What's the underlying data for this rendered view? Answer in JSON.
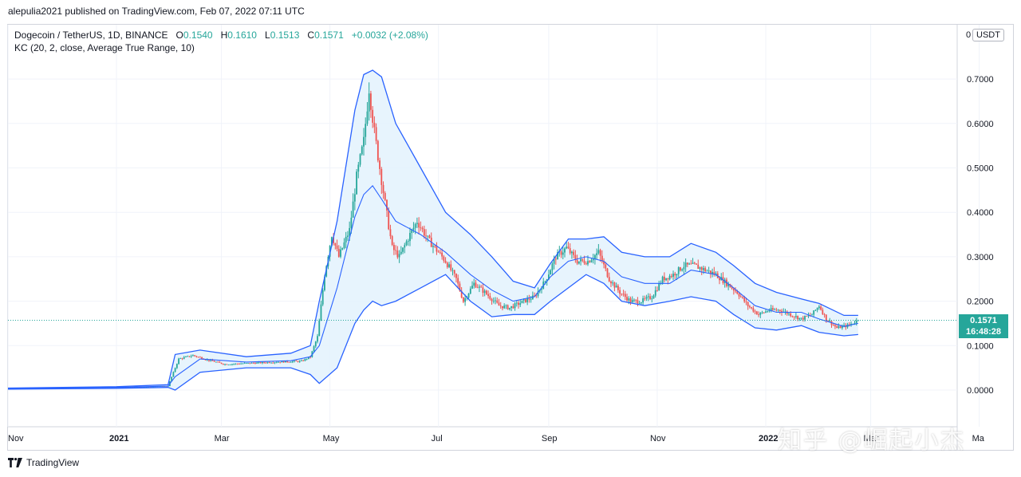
{
  "publisher_line": "alepulia2021 published on TradingView.com, Feb 07, 2022 07:11 UTC",
  "legend": {
    "symbol": "Dogecoin / TetherUS, 1D, BINANCE",
    "open_label": "O",
    "open": "0.1540",
    "high_label": "H",
    "high": "0.1610",
    "low_label": "L",
    "low": "0.1513",
    "close_label": "C",
    "close": "0.1571",
    "change": "+0.0032 (+2.08%)",
    "indicator": "KC (20, 2, close, Average True Range, 10)"
  },
  "unit_badge": "USDT",
  "top_tick_partial": "0",
  "price_tag": {
    "price": "0.1571",
    "countdown": "16:48:28"
  },
  "footer_brand": "TradingView",
  "watermark": "知乎 @崛起小杰",
  "colors": {
    "up": "#26a69a",
    "down": "#ef5350",
    "band": "#2962ff",
    "band_fill": "#e3f2fd"
  },
  "chart_data": {
    "type": "candlestick",
    "title": "Dogecoin / TetherUS, 1D, BINANCE",
    "y_ticks": [
      0.0,
      0.1,
      0.2,
      0.3,
      0.4,
      0.5,
      0.6,
      0.7
    ],
    "y_tick_labels": [
      "0.0000",
      "0.1000",
      "0.2000",
      "0.3000",
      "0.4000",
      "0.5000",
      "0.6000",
      "0.7000"
    ],
    "ylim": [
      -0.1,
      0.79
    ],
    "x_tick_labels": [
      "Nov",
      "2021",
      "Mar",
      "May",
      "Jul",
      "Sep",
      "Nov",
      "2022",
      "Mar",
      "Ma"
    ],
    "x_tick_days": [
      0,
      61,
      120,
      181,
      242,
      304,
      365,
      426,
      485,
      546
    ],
    "xlim": [
      0,
      540
    ],
    "last_price": 0.1571,
    "keltner_upper": [
      [
        0,
        0.0045
      ],
      [
        61,
        0.0075
      ],
      [
        90,
        0.012
      ],
      [
        94,
        0.08
      ],
      [
        108,
        0.09
      ],
      [
        134,
        0.075
      ],
      [
        159,
        0.083
      ],
      [
        170,
        0.1
      ],
      [
        175,
        0.2
      ],
      [
        185,
        0.38
      ],
      [
        195,
        0.63
      ],
      [
        200,
        0.71
      ],
      [
        205,
        0.72
      ],
      [
        210,
        0.705
      ],
      [
        218,
        0.6
      ],
      [
        232,
        0.5
      ],
      [
        246,
        0.4
      ],
      [
        260,
        0.35
      ],
      [
        272,
        0.3
      ],
      [
        284,
        0.245
      ],
      [
        296,
        0.23
      ],
      [
        305,
        0.285
      ],
      [
        315,
        0.34
      ],
      [
        325,
        0.34
      ],
      [
        335,
        0.345
      ],
      [
        345,
        0.31
      ],
      [
        358,
        0.3
      ],
      [
        372,
        0.3
      ],
      [
        384,
        0.33
      ],
      [
        398,
        0.31
      ],
      [
        408,
        0.28
      ],
      [
        420,
        0.24
      ],
      [
        432,
        0.22
      ],
      [
        446,
        0.205
      ],
      [
        456,
        0.195
      ],
      [
        470,
        0.168
      ],
      [
        478,
        0.168
      ]
    ],
    "keltner_mid": [
      [
        0,
        0.0035
      ],
      [
        61,
        0.006
      ],
      [
        90,
        0.009
      ],
      [
        94,
        0.03
      ],
      [
        108,
        0.07
      ],
      [
        134,
        0.063
      ],
      [
        159,
        0.066
      ],
      [
        170,
        0.075
      ],
      [
        175,
        0.1
      ],
      [
        185,
        0.23
      ],
      [
        195,
        0.39
      ],
      [
        200,
        0.44
      ],
      [
        205,
        0.46
      ],
      [
        210,
        0.43
      ],
      [
        218,
        0.38
      ],
      [
        232,
        0.35
      ],
      [
        246,
        0.31
      ],
      [
        260,
        0.26
      ],
      [
        272,
        0.225
      ],
      [
        284,
        0.2
      ],
      [
        296,
        0.21
      ],
      [
        305,
        0.255
      ],
      [
        315,
        0.29
      ],
      [
        325,
        0.3
      ],
      [
        335,
        0.29
      ],
      [
        345,
        0.255
      ],
      [
        358,
        0.24
      ],
      [
        372,
        0.24
      ],
      [
        384,
        0.27
      ],
      [
        398,
        0.26
      ],
      [
        408,
        0.23
      ],
      [
        420,
        0.19
      ],
      [
        432,
        0.175
      ],
      [
        446,
        0.175
      ],
      [
        456,
        0.16
      ],
      [
        470,
        0.143
      ],
      [
        478,
        0.15
      ]
    ],
    "keltner_lower": [
      [
        0,
        0.002
      ],
      [
        61,
        0.004
      ],
      [
        90,
        0.006
      ],
      [
        94,
        0.0
      ],
      [
        108,
        0.04
      ],
      [
        134,
        0.05
      ],
      [
        159,
        0.05
      ],
      [
        170,
        0.035
      ],
      [
        175,
        0.015
      ],
      [
        185,
        0.05
      ],
      [
        195,
        0.15
      ],
      [
        200,
        0.18
      ],
      [
        205,
        0.2
      ],
      [
        210,
        0.19
      ],
      [
        218,
        0.2
      ],
      [
        232,
        0.23
      ],
      [
        246,
        0.26
      ],
      [
        260,
        0.2
      ],
      [
        272,
        0.165
      ],
      [
        284,
        0.17
      ],
      [
        296,
        0.17
      ],
      [
        305,
        0.2
      ],
      [
        315,
        0.23
      ],
      [
        325,
        0.26
      ],
      [
        335,
        0.24
      ],
      [
        345,
        0.2
      ],
      [
        358,
        0.19
      ],
      [
        372,
        0.2
      ],
      [
        384,
        0.21
      ],
      [
        398,
        0.2
      ],
      [
        408,
        0.17
      ],
      [
        420,
        0.14
      ],
      [
        432,
        0.135
      ],
      [
        446,
        0.145
      ],
      [
        456,
        0.13
      ],
      [
        470,
        0.122
      ],
      [
        478,
        0.125
      ]
    ],
    "price_path": [
      [
        0,
        0.003
      ],
      [
        61,
        0.0055
      ],
      [
        90,
        0.009
      ],
      [
        93,
        0.04
      ],
      [
        96,
        0.07
      ],
      [
        104,
        0.078
      ],
      [
        112,
        0.068
      ],
      [
        122,
        0.058
      ],
      [
        134,
        0.06
      ],
      [
        150,
        0.063
      ],
      [
        165,
        0.065
      ],
      [
        170,
        0.075
      ],
      [
        174,
        0.12
      ],
      [
        178,
        0.26
      ],
      [
        182,
        0.35
      ],
      [
        186,
        0.3
      ],
      [
        192,
        0.36
      ],
      [
        196,
        0.48
      ],
      [
        200,
        0.56
      ],
      [
        203,
        0.68
      ],
      [
        206,
        0.58
      ],
      [
        209,
        0.5
      ],
      [
        212,
        0.42
      ],
      [
        216,
        0.32
      ],
      [
        220,
        0.3
      ],
      [
        226,
        0.35
      ],
      [
        230,
        0.38
      ],
      [
        236,
        0.34
      ],
      [
        242,
        0.31
      ],
      [
        246,
        0.29
      ],
      [
        252,
        0.25
      ],
      [
        256,
        0.2
      ],
      [
        262,
        0.24
      ],
      [
        268,
        0.22
      ],
      [
        276,
        0.19
      ],
      [
        282,
        0.185
      ],
      [
        290,
        0.2
      ],
      [
        296,
        0.21
      ],
      [
        302,
        0.245
      ],
      [
        308,
        0.3
      ],
      [
        314,
        0.32
      ],
      [
        320,
        0.29
      ],
      [
        326,
        0.29
      ],
      [
        332,
        0.31
      ],
      [
        338,
        0.25
      ],
      [
        344,
        0.22
      ],
      [
        350,
        0.2
      ],
      [
        356,
        0.2
      ],
      [
        362,
        0.21
      ],
      [
        368,
        0.25
      ],
      [
        374,
        0.26
      ],
      [
        380,
        0.28
      ],
      [
        386,
        0.28
      ],
      [
        392,
        0.27
      ],
      [
        398,
        0.26
      ],
      [
        404,
        0.24
      ],
      [
        410,
        0.22
      ],
      [
        416,
        0.19
      ],
      [
        422,
        0.17
      ],
      [
        428,
        0.18
      ],
      [
        434,
        0.18
      ],
      [
        440,
        0.17
      ],
      [
        446,
        0.16
      ],
      [
        452,
        0.17
      ],
      [
        456,
        0.19
      ],
      [
        460,
        0.16
      ],
      [
        466,
        0.14
      ],
      [
        472,
        0.145
      ],
      [
        478,
        0.1571
      ]
    ]
  }
}
